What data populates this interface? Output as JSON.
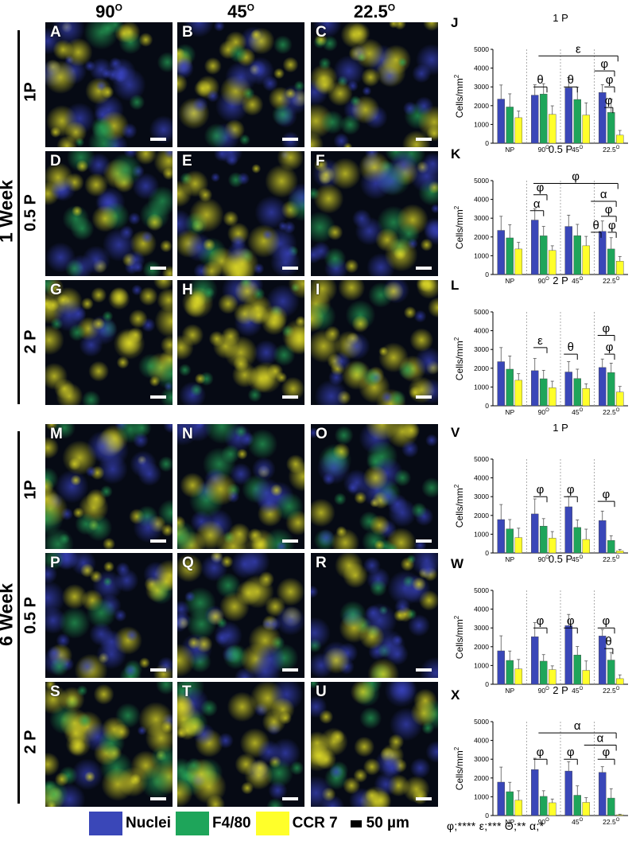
{
  "column_headers": [
    {
      "value": "90",
      "sup": "O"
    },
    {
      "value": "45",
      "sup": "O"
    },
    {
      "value": "22.5",
      "sup": "O"
    }
  ],
  "week_labels": [
    "1 Week",
    "6 Week"
  ],
  "row_labels": [
    "1P",
    "0.5 P",
    "2 P",
    "1P",
    "0.5 P",
    "2 P"
  ],
  "panel_letters": [
    "A",
    "B",
    "C",
    "D",
    "E",
    "F",
    "G",
    "H",
    "I",
    "M",
    "N",
    "O",
    "P",
    "Q",
    "R",
    "S",
    "T",
    "U"
  ],
  "legend": {
    "items": [
      {
        "label": "Nuclei",
        "color": "#3a47b8"
      },
      {
        "label": "F4/80",
        "color": "#1ea55a"
      },
      {
        "label": "CCR 7",
        "color": "#ffff2a"
      }
    ],
    "scale_label": "50 µm"
  },
  "significance_key": "φ;**** ε;*** Θ;** α;*",
  "chart_data": [
    {
      "type": "bar",
      "letter": "J",
      "title": "1 P",
      "ylabel": "Cells/mm",
      "ylabel_sup": "2",
      "ylim": [
        0,
        5000
      ],
      "yticks": [
        "0",
        "1000",
        "2000",
        "3000",
        "4000",
        "5000"
      ],
      "categories": [
        {
          "value": "NP",
          "sup": ""
        },
        {
          "value": "90",
          "sup": "O"
        },
        {
          "value": "45",
          "sup": "O"
        },
        {
          "value": "22.5",
          "sup": "O"
        }
      ],
      "series": [
        {
          "values": [
            2350,
            2560,
            2950,
            2700
          ],
          "errors": [
            750,
            550,
            550,
            420
          ]
        },
        {
          "values": [
            1930,
            2620,
            2330,
            1640
          ],
          "errors": [
            700,
            550,
            650,
            700
          ]
        },
        {
          "values": [
            1360,
            1540,
            1500,
            430
          ],
          "errors": [
            350,
            450,
            650,
            250
          ]
        }
      ],
      "annotations": [
        "ε",
        "θ",
        "θ",
        "φ",
        "φ",
        "φ"
      ]
    },
    {
      "type": "bar",
      "letter": "K",
      "title": "0.5 P",
      "ylabel": "Cells/mm",
      "ylabel_sup": "2",
      "ylim": [
        0,
        5000
      ],
      "yticks": [
        "0",
        "1000",
        "2000",
        "3000",
        "4000",
        "5000"
      ],
      "categories": [
        {
          "value": "NP",
          "sup": ""
        },
        {
          "value": "90",
          "sup": "O"
        },
        {
          "value": "45",
          "sup": "O"
        },
        {
          "value": "22.5",
          "sup": "O"
        }
      ],
      "series": [
        {
          "values": [
            2350,
            2900,
            2560,
            2300
          ],
          "errors": [
            750,
            600,
            600,
            550
          ]
        },
        {
          "values": [
            1950,
            2060,
            2070,
            1360
          ],
          "errors": [
            700,
            500,
            600,
            600
          ]
        },
        {
          "values": [
            1360,
            1280,
            1530,
            710
          ],
          "errors": [
            350,
            250,
            500,
            250
          ]
        }
      ],
      "annotations": [
        "φ",
        "α",
        "φ",
        "α",
        "φ",
        "φ",
        "θ"
      ]
    },
    {
      "type": "bar",
      "letter": "L",
      "title": "2 P",
      "ylabel": "Cells/mm",
      "ylabel_sup": "2",
      "ylim": [
        0,
        5000
      ],
      "yticks": [
        "0",
        "1000",
        "2000",
        "3000",
        "4000",
        "5000"
      ],
      "categories": [
        {
          "value": "NP",
          "sup": ""
        },
        {
          "value": "90",
          "sup": "O"
        },
        {
          "value": "45",
          "sup": "O"
        },
        {
          "value": "22.5",
          "sup": "O"
        }
      ],
      "series": [
        {
          "values": [
            2350,
            1870,
            1800,
            2040
          ],
          "errors": [
            750,
            650,
            550,
            450
          ]
        },
        {
          "values": [
            1950,
            1440,
            1450,
            1770
          ],
          "errors": [
            700,
            450,
            500,
            500
          ]
        },
        {
          "values": [
            1360,
            960,
            920,
            730
          ],
          "errors": [
            350,
            350,
            250,
            300
          ]
        }
      ],
      "annotations": [
        "ε",
        "θ",
        "φ",
        "φ"
      ]
    },
    {
      "type": "bar",
      "letter": "V",
      "title": "1 P",
      "ylabel": "Cells/mm",
      "ylabel_sup": "2",
      "ylim": [
        0,
        5000
      ],
      "yticks": [
        "0",
        "1000",
        "2000",
        "3000",
        "4000",
        "5000"
      ],
      "categories": [
        {
          "value": "NP",
          "sup": ""
        },
        {
          "value": "90",
          "sup": "O"
        },
        {
          "value": "45",
          "sup": "O"
        },
        {
          "value": "22.5",
          "sup": "O"
        }
      ],
      "series": [
        {
          "values": [
            1780,
            2080,
            2460,
            1730
          ],
          "errors": [
            800,
            800,
            550,
            500
          ]
        },
        {
          "values": [
            1280,
            1430,
            1360,
            670
          ],
          "errors": [
            500,
            400,
            400,
            250
          ]
        },
        {
          "values": [
            820,
            790,
            720,
            110
          ],
          "errors": [
            500,
            350,
            550,
            80
          ]
        }
      ],
      "annotations": [
        "φ",
        "φ",
        "φ"
      ]
    },
    {
      "type": "bar",
      "letter": "W",
      "title": "0.5 P",
      "ylabel": "Cells/mm",
      "ylabel_sup": "2",
      "ylim": [
        0,
        5000
      ],
      "yticks": [
        "0",
        "1000",
        "2000",
        "3000",
        "4000",
        "5000"
      ],
      "categories": [
        {
          "value": "NP",
          "sup": ""
        },
        {
          "value": "90",
          "sup": "O"
        },
        {
          "value": "45",
          "sup": "O"
        },
        {
          "value": "22.5",
          "sup": "O"
        }
      ],
      "series": [
        {
          "values": [
            1780,
            2530,
            3120,
            2570
          ],
          "errors": [
            800,
            750,
            600,
            350
          ]
        },
        {
          "values": [
            1270,
            1230,
            1560,
            1290
          ],
          "errors": [
            500,
            350,
            450,
            400
          ]
        },
        {
          "values": [
            820,
            780,
            740,
            300
          ],
          "errors": [
            500,
            200,
            500,
            200
          ]
        }
      ],
      "annotations": [
        "φ",
        "φ",
        "φ",
        "θ"
      ]
    },
    {
      "type": "bar",
      "letter": "X",
      "title": "2 P",
      "ylabel": "Cells/mm",
      "ylabel_sup": "2",
      "ylim": [
        0,
        5000
      ],
      "yticks": [
        "0",
        "1000",
        "2000",
        "3000",
        "4000",
        "5000"
      ],
      "categories": [
        {
          "value": "NP",
          "sup": ""
        },
        {
          "value": "90",
          "sup": "O"
        },
        {
          "value": "45",
          "sup": "O"
        },
        {
          "value": "22.5",
          "sup": "O"
        }
      ],
      "series": [
        {
          "values": [
            1780,
            2450,
            2370,
            2300
          ],
          "errors": [
            800,
            600,
            500,
            300
          ]
        },
        {
          "values": [
            1270,
            1020,
            1080,
            930
          ],
          "errors": [
            500,
            300,
            500,
            500
          ]
        },
        {
          "values": [
            820,
            680,
            700,
            40
          ],
          "errors": [
            500,
            200,
            250,
            30
          ]
        }
      ],
      "annotations": [
        "α",
        "α",
        "φ",
        "φ",
        "φ"
      ]
    }
  ]
}
